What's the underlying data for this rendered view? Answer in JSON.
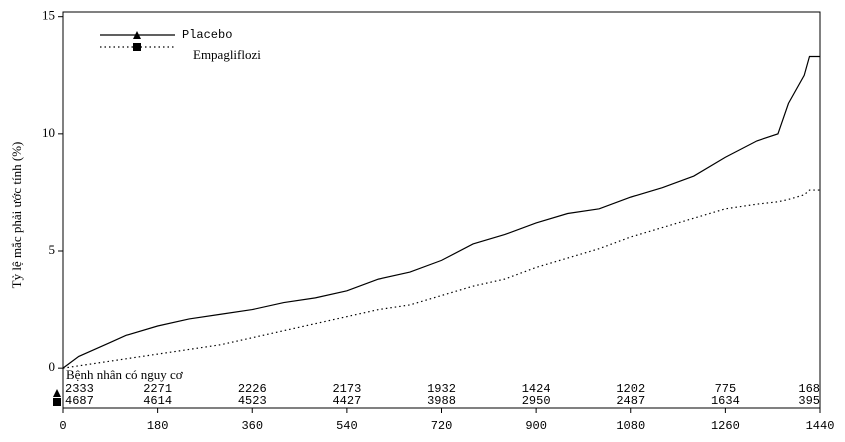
{
  "chart_data": {
    "type": "line",
    "y_label": "Tỷ lệ mắc phải ước tính (%)",
    "x": [
      0,
      30,
      60,
      90,
      120,
      180,
      240,
      300,
      360,
      420,
      480,
      540,
      600,
      660,
      720,
      780,
      840,
      900,
      960,
      1020,
      1080,
      1140,
      1200,
      1260,
      1320,
      1360,
      1380,
      1410,
      1420,
      1440
    ],
    "series": [
      {
        "name": "Placebo",
        "color": "#000000",
        "linestyle": "solid",
        "marker": "triangle",
        "values": [
          0,
          0.5,
          0.8,
          1.1,
          1.4,
          1.8,
          2.1,
          2.3,
          2.5,
          2.8,
          3.0,
          3.3,
          3.8,
          4.1,
          4.6,
          5.3,
          5.7,
          6.2,
          6.6,
          6.8,
          7.3,
          7.7,
          8.2,
          9.0,
          9.7,
          10.0,
          11.3,
          12.5,
          13.3,
          13.3
        ]
      },
      {
        "name": "Empagliflozi",
        "color": "#000000",
        "linestyle": "dotted",
        "marker": "square",
        "values": [
          0,
          0.1,
          0.2,
          0.3,
          0.4,
          0.6,
          0.8,
          1.0,
          1.3,
          1.6,
          1.9,
          2.2,
          2.5,
          2.7,
          3.1,
          3.5,
          3.8,
          4.3,
          4.7,
          5.1,
          5.6,
          6.0,
          6.4,
          6.8,
          7.0,
          7.1,
          7.2,
          7.4,
          7.6,
          7.6
        ]
      }
    ],
    "xlim": [
      0,
      1440
    ],
    "xticks": [
      0,
      180,
      360,
      540,
      720,
      900,
      1080,
      1260,
      1440
    ],
    "ylim": [
      -1.7,
      15.2
    ],
    "yticks": [
      0,
      5,
      10,
      15
    ],
    "risk_table": {
      "label": "Bệnh nhân có nguy cơ",
      "rows": [
        [
          2333,
          2271,
          2226,
          2173,
          1932,
          1424,
          1202,
          775,
          168
        ],
        [
          4687,
          4614,
          4523,
          4427,
          3988,
          2950,
          2487,
          1634,
          395
        ]
      ]
    }
  }
}
